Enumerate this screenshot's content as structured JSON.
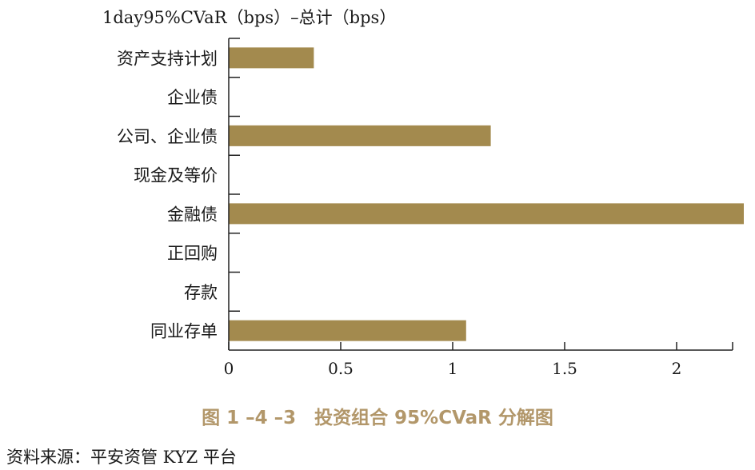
{
  "chart_data": {
    "type": "bar",
    "orientation": "horizontal",
    "title": "1day95%CVaR（bps）–总计（bps）",
    "categories": [
      "资产支持计划",
      "企业债",
      "公司、企业债",
      "现金及等价",
      "金融债",
      "正回购",
      "存款",
      "同业存单"
    ],
    "values": [
      0.38,
      0,
      1.17,
      0,
      2.3,
      0,
      0,
      1.06
    ],
    "xlim": [
      0,
      2.3
    ],
    "xticks": [
      0,
      0.5,
      1,
      1.5,
      2
    ],
    "xtick_labels": [
      "0",
      "0.5",
      "1",
      "1.5",
      "2"
    ],
    "grid": false,
    "legend": "none",
    "colors": {
      "bar": "#a38a4e",
      "axis": "#222222",
      "text": "#1a1a1a"
    }
  },
  "caption": "图 1 –4 –3　投资组合 95%CVaR 分解图",
  "source": "资料来源：平安资管 KYZ 平台"
}
